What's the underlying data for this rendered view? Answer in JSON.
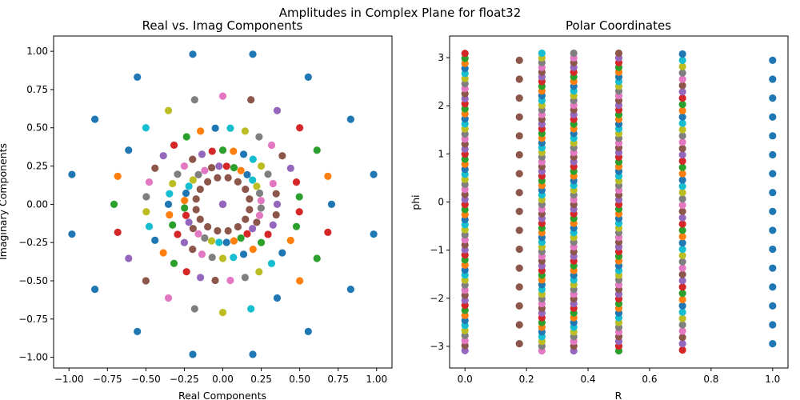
{
  "figure": {
    "suptitle": "Amplitudes in Complex Plane for float32"
  },
  "chart_data": [
    {
      "type": "scatter",
      "title": "Real vs. Imag Components",
      "xlabel": "Real Components",
      "ylabel": "Imaginary Components",
      "xlim": [
        -1.1,
        1.1
      ],
      "ylim": [
        -1.07,
        1.1
      ],
      "xticks": [
        -1.0,
        -0.75,
        -0.5,
        -0.25,
        0.0,
        0.25,
        0.5,
        0.75,
        1.0
      ],
      "xtick_labels": [
        "−1.00",
        "−0.75",
        "−0.50",
        "−0.25",
        "0.00",
        "0.25",
        "0.50",
        "0.75",
        "1.00"
      ],
      "yticks": [
        -1.0,
        -0.75,
        -0.5,
        -0.25,
        0.0,
        0.25,
        0.5,
        0.75,
        1.0
      ],
      "ytick_labels": [
        "−1.00",
        "−0.75",
        "−0.50",
        "−0.25",
        "0.00",
        "0.25",
        "0.50",
        "0.75",
        "1.00"
      ],
      "grid": false,
      "rings": [
        {
          "r": 1.0,
          "count": 16,
          "phase_deg": 11.25,
          "color": "#1f77b4"
        },
        {
          "r": 0.7071,
          "count": 24,
          "phase_deg": 0,
          "palette_offset": 0
        },
        {
          "r": 0.5,
          "count": 32,
          "phase_deg": 5.6,
          "palette_offset": 2
        },
        {
          "r": 0.3536,
          "count": 32,
          "phase_deg": 0,
          "palette_offset": 4
        },
        {
          "r": 0.25,
          "count": 32,
          "phase_deg": 5.6,
          "palette_offset": 6
        },
        {
          "r": 0.1768,
          "count": 16,
          "phase_deg": 11.25,
          "color": "#8c564b"
        },
        {
          "r": 0.0,
          "count": 5,
          "phase_deg": 0,
          "color": "#9467bd"
        }
      ],
      "palette": [
        "#1f77b4",
        "#ff7f0e",
        "#2ca02c",
        "#d62728",
        "#9467bd",
        "#8c564b",
        "#e377c2",
        "#7f7f7f",
        "#bcbd22",
        "#17becf"
      ]
    },
    {
      "type": "scatter",
      "title": "Polar Coordinates",
      "xlabel": "R",
      "ylabel": "phi",
      "xlim": [
        -0.05,
        1.05
      ],
      "ylim": [
        -3.45,
        3.45
      ],
      "xticks": [
        0.0,
        0.2,
        0.4,
        0.6,
        0.8,
        1.0
      ],
      "xtick_labels": [
        "0.0",
        "0.2",
        "0.4",
        "0.6",
        "0.8",
        "1.0"
      ],
      "yticks": [
        -3,
        -2,
        -1,
        0,
        1,
        2,
        3
      ],
      "ytick_labels": [
        "−3",
        "−2",
        "−1",
        "0",
        "1",
        "2",
        "3"
      ],
      "grid": false,
      "columns": [
        {
          "r": 0.0,
          "count": 60,
          "palette_offset": 4
        },
        {
          "r": 0.1768,
          "count": 16,
          "color": "#8c564b"
        },
        {
          "r": 0.25,
          "count": 64,
          "palette_offset": 6
        },
        {
          "r": 0.3536,
          "count": 64,
          "palette_offset": 4
        },
        {
          "r": 0.5,
          "count": 64,
          "palette_offset": 2
        },
        {
          "r": 0.7071,
          "count": 48,
          "palette_offset": 3
        },
        {
          "r": 1.0,
          "count": 16,
          "color": "#1f77b4"
        }
      ],
      "palette": [
        "#1f77b4",
        "#ff7f0e",
        "#2ca02c",
        "#d62728",
        "#9467bd",
        "#8c564b",
        "#e377c2",
        "#7f7f7f",
        "#bcbd22",
        "#17becf"
      ]
    }
  ]
}
